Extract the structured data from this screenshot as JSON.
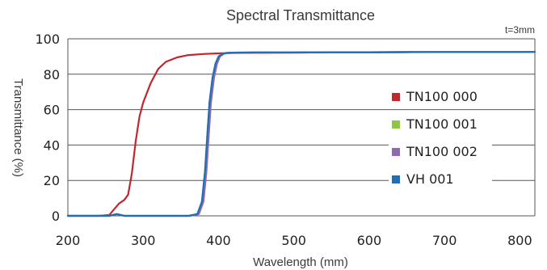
{
  "chart_data": {
    "type": "line",
    "title": "Spectral Transmittance",
    "note": "t=3mm",
    "xlabel": "Wavelength (mm)",
    "ylabel": "Transmittance (%)",
    "xlim": [
      200,
      820
    ],
    "ylim": [
      0,
      100
    ],
    "xticks": [
      200,
      300,
      400,
      500,
      600,
      700,
      800
    ],
    "yticks": [
      0,
      20,
      40,
      60,
      80,
      100
    ],
    "grid": "horizontal",
    "legend_position": "right",
    "series": [
      {
        "name": "TN100 000",
        "color": "#c1272d",
        "x": [
          200,
          240,
          255,
          262,
          268,
          275,
          280,
          285,
          290,
          295,
          300,
          310,
          320,
          330,
          345,
          360,
          380,
          400,
          420,
          450,
          500,
          550,
          600,
          650,
          700,
          750,
          800,
          820
        ],
        "y": [
          0,
          0,
          0.5,
          4,
          7,
          9,
          12,
          24,
          42,
          56,
          64,
          75,
          83,
          87,
          89.5,
          90.8,
          91.4,
          91.8,
          92,
          92.1,
          92.2,
          92.3,
          92.3,
          92.4,
          92.5,
          92.5,
          92.5,
          92.6
        ]
      },
      {
        "name": "TN100 001",
        "color": "#8dc63f",
        "x": [
          200,
          255,
          265,
          275,
          300,
          360,
          372,
          378,
          382,
          385,
          388,
          392,
          396,
          400,
          405,
          410,
          420,
          450,
          500,
          550,
          600,
          650,
          700,
          750,
          800,
          820
        ],
        "y": [
          0,
          0,
          1,
          0,
          0,
          0,
          1,
          8,
          25,
          45,
          64,
          78,
          86,
          90,
          91.5,
          92,
          92.2,
          92.3,
          92.3,
          92.4,
          92.4,
          92.5,
          92.5,
          92.5,
          92.5,
          92.6
        ]
      },
      {
        "name": "TN100 002",
        "color": "#8e6bb0",
        "x": [
          200,
          255,
          265,
          275,
          300,
          362,
          374,
          380,
          384,
          387,
          390,
          394,
          398,
          402,
          407,
          412,
          420,
          450,
          500,
          550,
          600,
          650,
          700,
          750,
          800,
          820
        ],
        "y": [
          0,
          0,
          1,
          0,
          0,
          0,
          1,
          8,
          25,
          45,
          64,
          78,
          86,
          90,
          91.5,
          92,
          92.2,
          92.3,
          92.3,
          92.4,
          92.4,
          92.5,
          92.5,
          92.5,
          92.5,
          92.6
        ]
      },
      {
        "name": "VH 001",
        "color": "#1f6fb5",
        "x": [
          200,
          255,
          265,
          275,
          300,
          360,
          372,
          378,
          382,
          385,
          388,
          392,
          396,
          400,
          405,
          410,
          420,
          450,
          500,
          550,
          600,
          650,
          700,
          750,
          800,
          820
        ],
        "y": [
          0,
          0,
          1,
          0,
          0,
          0,
          1,
          8,
          25,
          45,
          64,
          78,
          86,
          90,
          91.5,
          92,
          92.2,
          92.3,
          92.3,
          92.4,
          92.4,
          92.5,
          92.5,
          92.5,
          92.5,
          92.6
        ]
      }
    ]
  }
}
